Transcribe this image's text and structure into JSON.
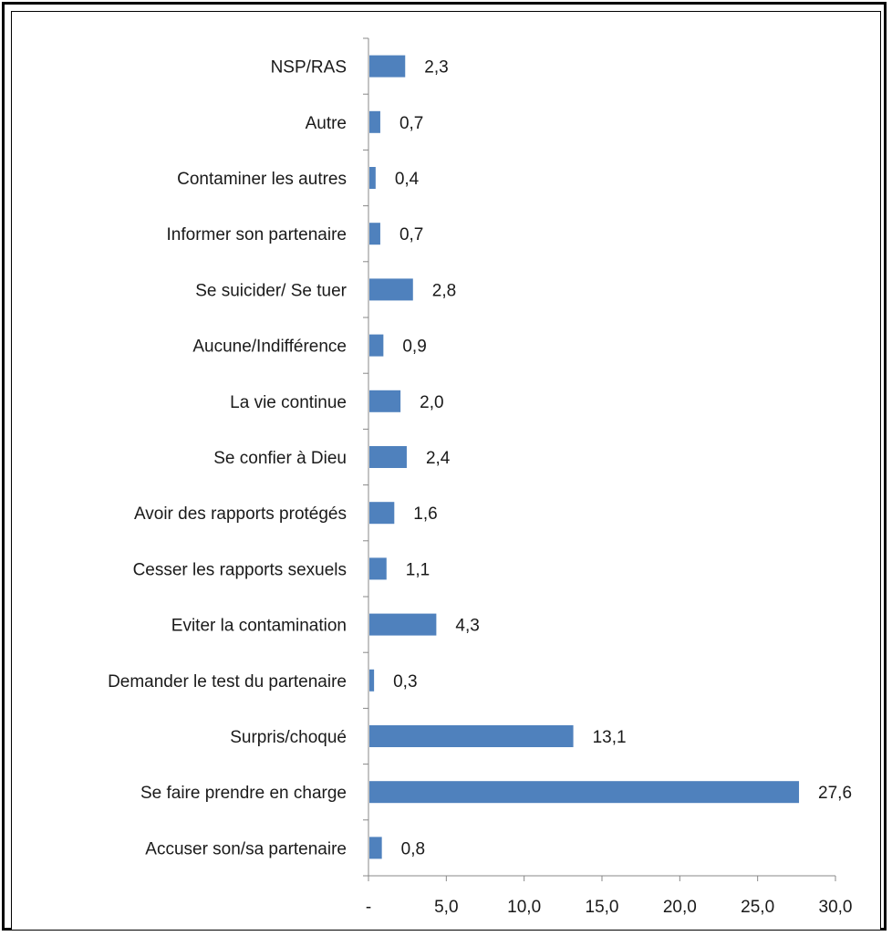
{
  "chart_data": {
    "type": "bar",
    "orientation": "horizontal",
    "categories": [
      "NSP/RAS",
      "Autre",
      "Contaminer les autres",
      "Informer son partenaire",
      "Se suicider/ Se tuer",
      "Aucune/Indifférence",
      "La vie continue",
      "Se confier à Dieu",
      "Avoir des rapports protégés",
      "Cesser les rapports sexuels",
      "Eviter la contamination",
      "Demander le test du partenaire",
      "Surpris/choqué",
      "Se faire prendre en charge",
      "Accuser son/sa partenaire"
    ],
    "values": [
      2.3,
      0.7,
      0.4,
      0.7,
      2.8,
      0.9,
      2.0,
      2.4,
      1.6,
      1.1,
      4.3,
      0.3,
      13.1,
      27.6,
      0.8
    ],
    "value_labels": [
      "2,3",
      "0,7",
      "0,4",
      "0,7",
      "2,8",
      "0,9",
      "2,0",
      "2,4",
      "1,6",
      "1,1",
      "4,3",
      "0,3",
      "13,1",
      "27,6",
      "0,8"
    ],
    "xlim": [
      0,
      30
    ],
    "x_ticks": [
      0,
      5,
      10,
      15,
      20,
      25,
      30
    ],
    "x_tick_labels": [
      "-",
      "5,0",
      "10,0",
      "15,0",
      "20,0",
      "25,0",
      "30,0"
    ],
    "bar_color": "#4f81bd",
    "grid": false,
    "legend": "none",
    "title": "",
    "xlabel": "",
    "ylabel": ""
  }
}
